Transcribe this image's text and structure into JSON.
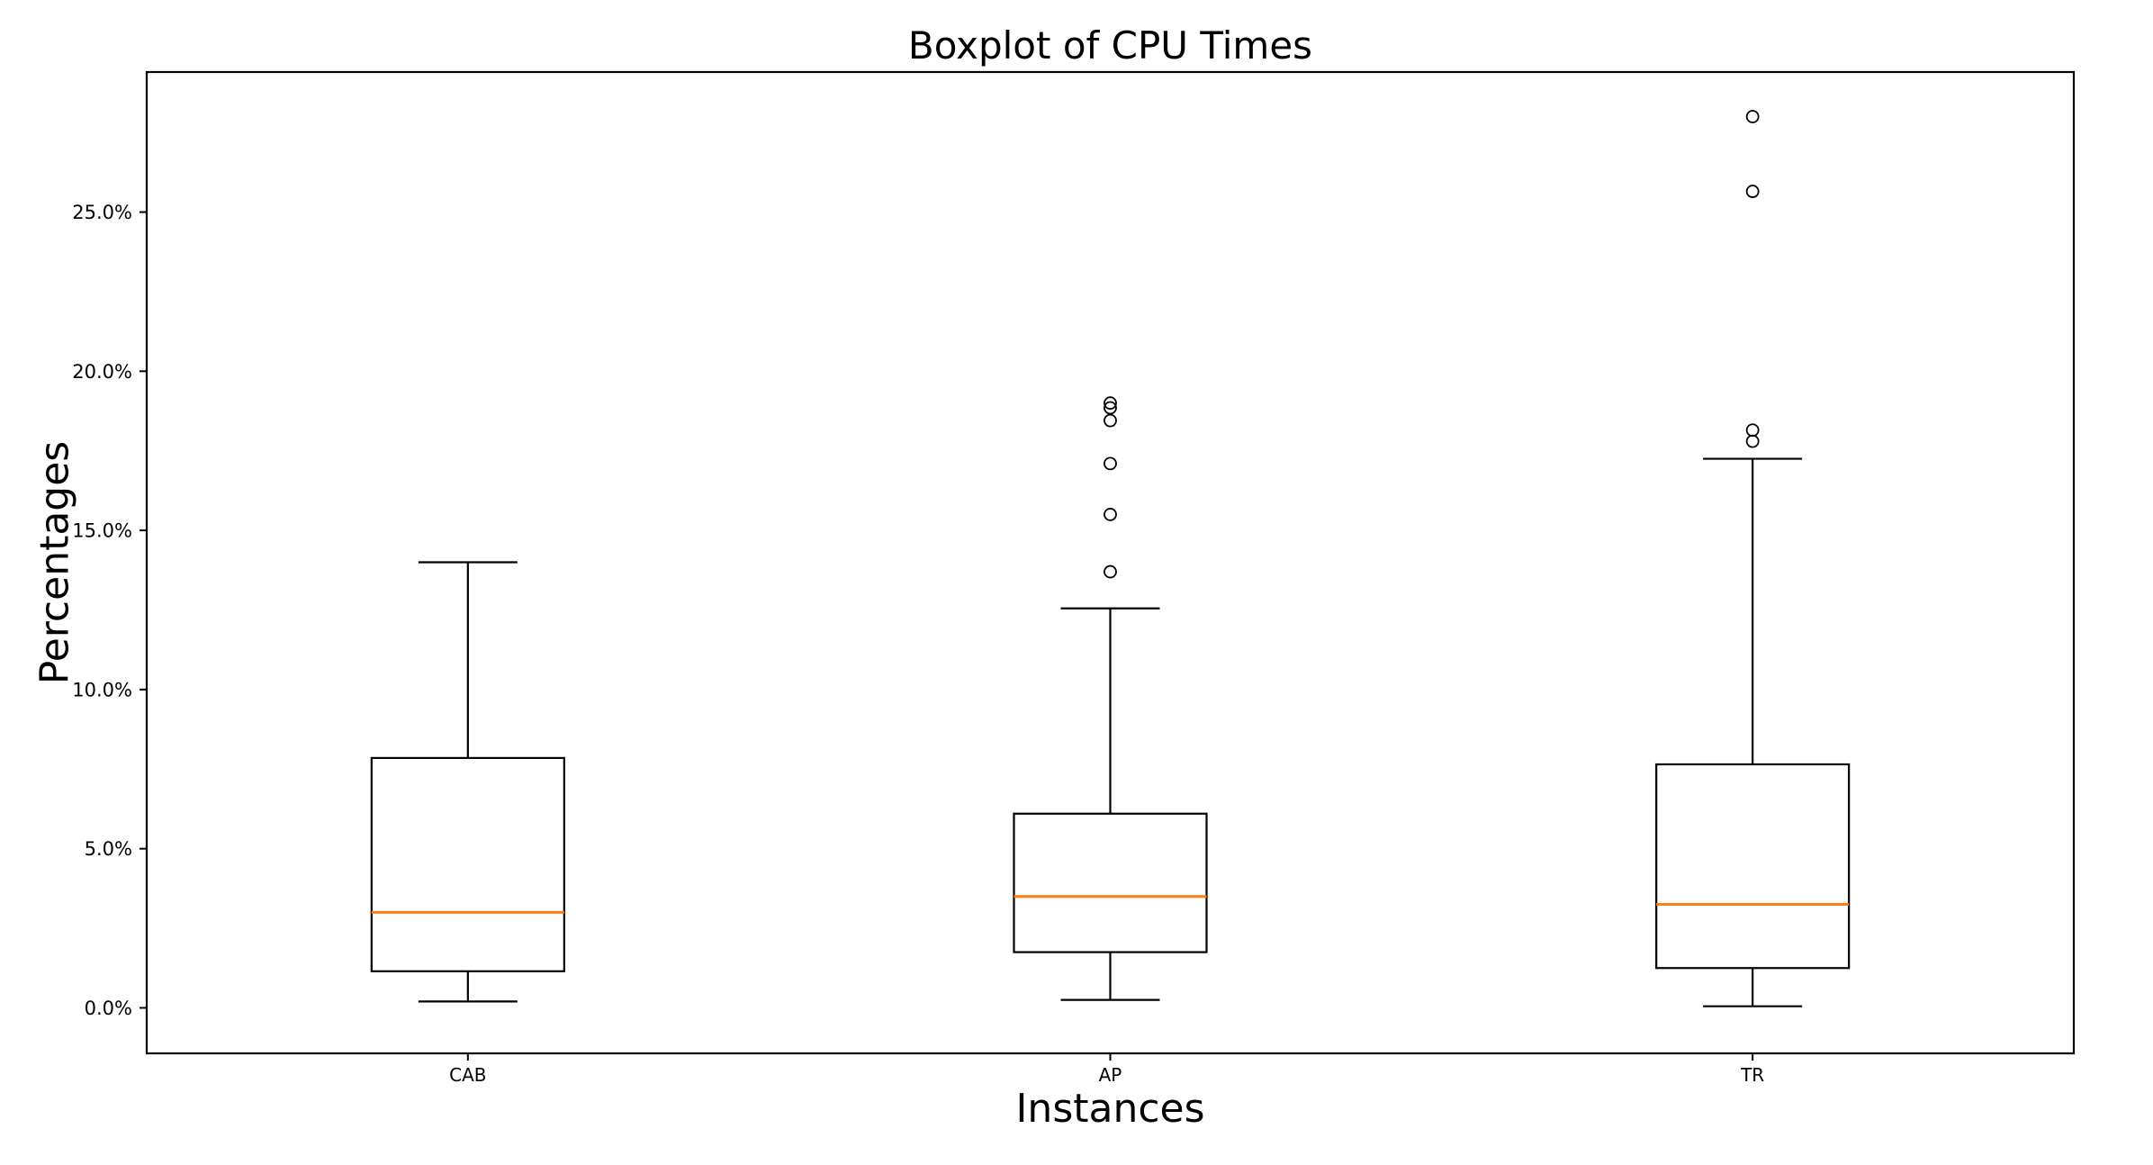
{
  "chart_data": {
    "type": "boxplot",
    "title": "Boxplot of CPU Times",
    "xlabel": "Instances",
    "ylabel": "Percentages",
    "categories": [
      "CAB",
      "AP",
      "TR"
    ],
    "series": [
      {
        "name": "CAB",
        "whislo": 0.2,
        "q1": 1.15,
        "med": 3.0,
        "q3": 7.85,
        "whishi": 14.0,
        "fliers": []
      },
      {
        "name": "AP",
        "whislo": 0.25,
        "q1": 1.75,
        "med": 3.5,
        "q3": 6.1,
        "whishi": 12.55,
        "fliers": [
          13.7,
          15.5,
          17.1,
          18.45,
          18.85,
          19.0
        ]
      },
      {
        "name": "TR",
        "whislo": 0.05,
        "q1": 1.25,
        "med": 3.25,
        "q3": 7.65,
        "whishi": 17.25,
        "fliers": [
          17.8,
          18.15,
          25.65,
          28.0
        ]
      }
    ],
    "yticks": {
      "values": [
        0,
        5,
        10,
        15,
        20,
        25
      ],
      "labels": [
        "0.0%",
        "5.0%",
        "10.0%",
        "15.0%",
        "20.0%",
        "25.0%"
      ]
    },
    "ylim": [
      -1.43,
      29.4
    ],
    "xlim": [
      0.5,
      3.5
    ],
    "positions": [
      1,
      2,
      3
    ],
    "grid": false,
    "legend_position": "none",
    "colors": {
      "median": "#ff7f0e",
      "box": "#000000",
      "whisker": "#000000",
      "flier": "#000000",
      "background": "#ffffff"
    }
  }
}
